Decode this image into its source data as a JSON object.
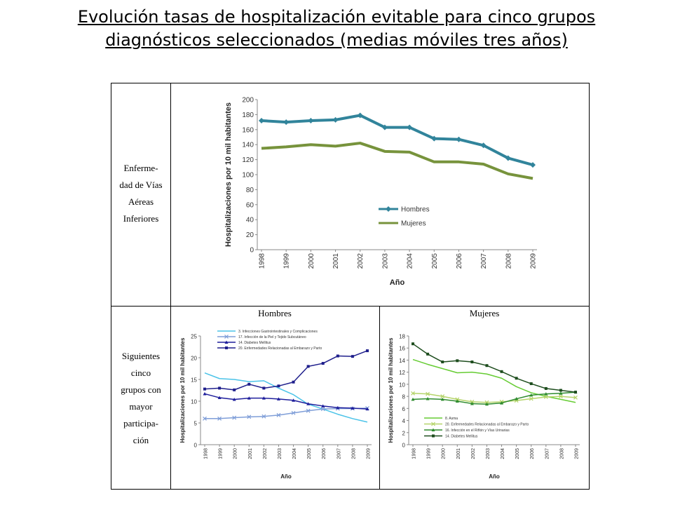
{
  "title_line1": "Evolución tasas de hospitalización evitable para cinco grupos",
  "title_line2": "diagnósticos seleccionados (medias móviles tres años)",
  "row1_label": [
    "Enferme-",
    "dad de Vías",
    "Aéreas",
    "Inferiores"
  ],
  "row2_label": [
    "Siguientes",
    "cinco",
    "grupos con",
    "mayor",
    "participa-",
    "ción"
  ],
  "panel_hombres": "Hombres",
  "panel_mujeres": "Mujeres",
  "chart_data": [
    {
      "type": "line",
      "title": "",
      "xlabel": "Año",
      "ylabel": "Hospitalizaciones por 10 mil habitantes",
      "categories": [
        "1998",
        "1999",
        "2000",
        "2001",
        "2002",
        "2003",
        "2004",
        "2005",
        "2006",
        "2007",
        "2008",
        "2009"
      ],
      "ylim": [
        0,
        200
      ],
      "yticks": [
        0,
        20,
        40,
        60,
        80,
        100,
        120,
        140,
        160,
        180,
        200
      ],
      "legend_position": "inside-bottom-center",
      "series": [
        {
          "name": "Hombres",
          "color": "#31849b",
          "marker": "diamond",
          "values": [
            172,
            170,
            172,
            173,
            179,
            163,
            163,
            148,
            147,
            139,
            122,
            113
          ]
        },
        {
          "name": "Mujeres",
          "color": "#77933c",
          "marker": "none",
          "values": [
            135,
            137,
            140,
            138,
            142,
            131,
            130,
            117,
            117,
            114,
            101,
            95
          ]
        }
      ]
    },
    {
      "type": "line",
      "title": "",
      "xlabel": "Año",
      "ylabel": "Hospitalizaciones por 10 mil habitantes",
      "categories": [
        "1998",
        "1999",
        "2000",
        "2001",
        "2002",
        "2003",
        "2004",
        "2005",
        "2006",
        "2007",
        "2008",
        "2009"
      ],
      "ylim": [
        0,
        25
      ],
      "yticks": [
        0,
        5,
        10,
        15,
        20,
        25
      ],
      "legend_position": "inside-top",
      "series": [
        {
          "name": "3. Infecciones Gastrointestinales y Complicaciones",
          "color": "#4bc3e8",
          "marker": "none",
          "values": [
            16.5,
            15.2,
            15.0,
            14.5,
            14.7,
            13.0,
            11.5,
            9.3,
            8.2,
            7.0,
            6.0,
            5.2
          ]
        },
        {
          "name": "17. Infección de la Piel y Tejido Subcutáneo",
          "color": "#7f9ed8",
          "marker": "x",
          "values": [
            6.0,
            6.0,
            6.2,
            6.4,
            6.5,
            6.8,
            7.3,
            7.8,
            8.2,
            8.3,
            8.3,
            8.4
          ]
        },
        {
          "name": "14. Diabetes Mellitus",
          "color": "#1f1f9c",
          "marker": "triangle",
          "values": [
            11.7,
            10.8,
            10.4,
            10.7,
            10.7,
            10.5,
            10.2,
            9.4,
            8.9,
            8.5,
            8.4,
            8.2
          ]
        },
        {
          "name": "20. Enfermedades Relacionadas al Embarazo y Parto",
          "color": "#1f1f8c",
          "marker": "square",
          "values": [
            12.8,
            13.0,
            12.6,
            13.9,
            13.0,
            13.5,
            14.4,
            18.0,
            18.7,
            20.4,
            20.3,
            21.6
          ]
        }
      ]
    },
    {
      "type": "line",
      "title": "",
      "xlabel": "Año",
      "ylabel": "Hospitalizaciones por 10 mil habitantes",
      "categories": [
        "1998",
        "1999",
        "2000",
        "2001",
        "2002",
        "2003",
        "2004",
        "2005",
        "2006",
        "2007",
        "2008",
        "2009"
      ],
      "ylim": [
        0,
        18
      ],
      "yticks": [
        0,
        2,
        4,
        6,
        8,
        10,
        12,
        14,
        16,
        18
      ],
      "legend_position": "inside-bottom",
      "series": [
        {
          "name": "8. Asma",
          "color": "#66cc33",
          "marker": "none",
          "values": [
            14.1,
            13.3,
            12.6,
            11.9,
            12.0,
            11.7,
            11.0,
            9.6,
            8.6,
            8.0,
            7.5,
            7.0
          ]
        },
        {
          "name": "20. Enfermedades Relacionadas al Embarazo y Parto",
          "color": "#b5d46a",
          "marker": "x",
          "values": [
            8.5,
            8.4,
            8.0,
            7.5,
            7.1,
            7.0,
            7.1,
            7.3,
            7.6,
            7.9,
            8.0,
            7.8
          ]
        },
        {
          "name": "16. Infección en el Riñón y Vías Urinarias",
          "color": "#2e8b2e",
          "marker": "triangle",
          "values": [
            7.5,
            7.6,
            7.5,
            7.2,
            6.8,
            6.7,
            6.9,
            7.6,
            8.2,
            8.4,
            8.5,
            8.7
          ]
        },
        {
          "name": "14. Diabetes Mellitus",
          "color": "#1e4d1e",
          "marker": "square",
          "values": [
            16.7,
            15.0,
            13.7,
            13.9,
            13.7,
            13.1,
            12.1,
            11.0,
            10.1,
            9.3,
            9.0,
            8.7
          ]
        }
      ]
    }
  ]
}
